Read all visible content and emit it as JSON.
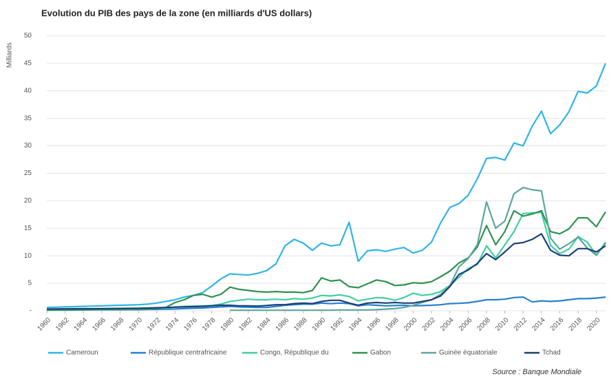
{
  "chart_data": {
    "type": "line",
    "title": "Evolution du PIB des pays de la zone (en milliards d'US dollars)",
    "ylabel": "Milliards",
    "source": "Source : Banque Mondiale",
    "x": [
      1960,
      1961,
      1962,
      1963,
      1964,
      1965,
      1966,
      1967,
      1968,
      1969,
      1970,
      1971,
      1972,
      1973,
      1974,
      1975,
      1976,
      1977,
      1978,
      1979,
      1980,
      1981,
      1982,
      1983,
      1984,
      1985,
      1986,
      1987,
      1988,
      1989,
      1990,
      1991,
      1992,
      1993,
      1994,
      1995,
      1996,
      1997,
      1998,
      1999,
      2000,
      2001,
      2002,
      2003,
      2004,
      2005,
      2006,
      2007,
      2008,
      2009,
      2010,
      2011,
      2012,
      2013,
      2014,
      2015,
      2016,
      2017,
      2018,
      2019,
      2020,
      2021
    ],
    "xlim": [
      1960,
      2021
    ],
    "xticks": [
      1960,
      1962,
      1964,
      1966,
      1968,
      1970,
      1972,
      1974,
      1976,
      1978,
      1980,
      1982,
      1984,
      1986,
      1988,
      1990,
      1992,
      1994,
      1996,
      1998,
      2000,
      2002,
      2004,
      2006,
      2008,
      2010,
      2012,
      2014,
      2016,
      2018,
      2020
    ],
    "ylim": [
      0,
      50
    ],
    "yticks": [
      {
        "value": 0,
        "label": "-"
      },
      5,
      10,
      15,
      20,
      25,
      30,
      35,
      40,
      45,
      50
    ],
    "grid": true,
    "legend": "bottom",
    "series": [
      {
        "name": "Cameroun",
        "color": "#2eb4e8",
        "values": [
          0.6,
          0.65,
          0.7,
          0.75,
          0.8,
          0.85,
          0.9,
          0.95,
          1.0,
          1.05,
          1.1,
          1.2,
          1.4,
          1.7,
          2.0,
          2.5,
          2.8,
          3.3,
          4.5,
          5.8,
          6.7,
          6.6,
          6.5,
          6.8,
          7.3,
          8.5,
          11.8,
          13.0,
          12.3,
          11.0,
          12.3,
          11.8,
          12.0,
          16.1,
          9.0,
          10.9,
          11.1,
          10.8,
          11.2,
          11.5,
          10.5,
          11.0,
          12.5,
          16.0,
          18.8,
          19.5,
          21.0,
          24.0,
          27.7,
          27.9,
          27.4,
          30.5,
          30.0,
          33.6,
          36.3,
          32.2,
          33.8,
          36.2,
          39.9,
          39.6,
          40.9,
          45.0
        ]
      },
      {
        "name": "République centrafricaine",
        "color": "#2a7fcf",
        "values": [
          0.11,
          0.12,
          0.13,
          0.14,
          0.15,
          0.16,
          0.17,
          0.18,
          0.19,
          0.2,
          0.2,
          0.22,
          0.25,
          0.3,
          0.33,
          0.4,
          0.45,
          0.5,
          0.6,
          0.7,
          0.8,
          0.7,
          0.65,
          0.6,
          0.6,
          0.8,
          1.0,
          1.1,
          1.2,
          1.2,
          1.4,
          1.3,
          1.4,
          1.3,
          0.9,
          1.1,
          1.0,
          0.9,
          0.95,
          1.0,
          0.9,
          0.95,
          1.0,
          1.1,
          1.3,
          1.35,
          1.45,
          1.7,
          2.0,
          2.0,
          2.1,
          2.4,
          2.5,
          1.6,
          1.8,
          1.7,
          1.8,
          2.0,
          2.2,
          2.2,
          2.3,
          2.5
        ]
      },
      {
        "name": "Congo, République du",
        "color": "#3fcf9f",
        "values": [
          0.13,
          0.14,
          0.15,
          0.16,
          0.18,
          0.2,
          0.21,
          0.23,
          0.25,
          0.27,
          0.3,
          0.33,
          0.4,
          0.5,
          0.7,
          0.8,
          0.85,
          0.9,
          0.95,
          1.2,
          1.7,
          1.9,
          2.1,
          2.0,
          2.0,
          2.1,
          2.0,
          2.2,
          2.1,
          2.3,
          2.8,
          2.7,
          2.9,
          2.6,
          1.8,
          2.1,
          2.4,
          2.3,
          1.9,
          2.4,
          3.2,
          2.8,
          3.0,
          3.5,
          4.6,
          6.1,
          7.7,
          8.4,
          11.8,
          9.6,
          12.0,
          14.4,
          17.7,
          17.8,
          17.9,
          11.9,
          10.4,
          11.2,
          13.5,
          12.5,
          10.1,
          12.5
        ]
      },
      {
        "name": "Gabon",
        "color": "#2e9150",
        "values": [
          0.14,
          0.16,
          0.17,
          0.19,
          0.2,
          0.23,
          0.25,
          0.27,
          0.29,
          0.32,
          0.32,
          0.38,
          0.43,
          0.6,
          1.5,
          2.0,
          2.8,
          3.0,
          2.5,
          3.0,
          4.3,
          3.9,
          3.7,
          3.5,
          3.4,
          3.5,
          3.4,
          3.4,
          3.3,
          3.7,
          6.0,
          5.4,
          5.6,
          4.4,
          4.2,
          4.9,
          5.6,
          5.3,
          4.6,
          4.7,
          5.1,
          5.0,
          5.3,
          6.2,
          7.2,
          8.7,
          9.6,
          11.6,
          15.5,
          12.0,
          14.4,
          18.2,
          17.2,
          17.6,
          18.2,
          14.4,
          14.0,
          14.9,
          16.9,
          16.9,
          15.3,
          18.0
        ]
      },
      {
        "name": "Guinée équatoriale",
        "color": "#5aa69c",
        "values": [
          null,
          null,
          null,
          null,
          null,
          null,
          null,
          null,
          null,
          null,
          null,
          null,
          null,
          null,
          null,
          null,
          null,
          null,
          null,
          null,
          0.1,
          0.1,
          0.1,
          0.1,
          0.1,
          0.1,
          0.1,
          0.1,
          0.1,
          0.1,
          0.1,
          0.1,
          0.15,
          0.15,
          0.15,
          0.15,
          0.2,
          0.3,
          0.4,
          0.6,
          1.0,
          1.5,
          2.0,
          3.0,
          4.5,
          8.0,
          9.5,
          12.0,
          19.8,
          15.0,
          16.3,
          21.3,
          22.4,
          22.0,
          21.8,
          13.2,
          11.2,
          12.2,
          13.4,
          11.4,
          10.1,
          12.3
        ]
      },
      {
        "name": "Tchad",
        "color": "#1c3f78",
        "values": [
          0.31,
          0.33,
          0.35,
          0.36,
          0.37,
          0.38,
          0.4,
          0.41,
          0.42,
          0.44,
          0.46,
          0.5,
          0.55,
          0.6,
          0.65,
          0.7,
          0.75,
          0.8,
          0.9,
          1.0,
          1.0,
          0.9,
          0.9,
          0.85,
          0.95,
          1.1,
          1.1,
          1.3,
          1.4,
          1.3,
          1.7,
          1.9,
          1.9,
          1.4,
          1.0,
          1.4,
          1.5,
          1.4,
          1.5,
          1.4,
          1.4,
          1.7,
          2.0,
          2.7,
          4.4,
          6.6,
          7.4,
          8.6,
          10.4,
          9.3,
          10.7,
          12.2,
          12.4,
          13.0,
          14.0,
          11.0,
          10.1,
          10.0,
          11.3,
          11.3,
          10.7,
          11.8
        ]
      }
    ]
  }
}
